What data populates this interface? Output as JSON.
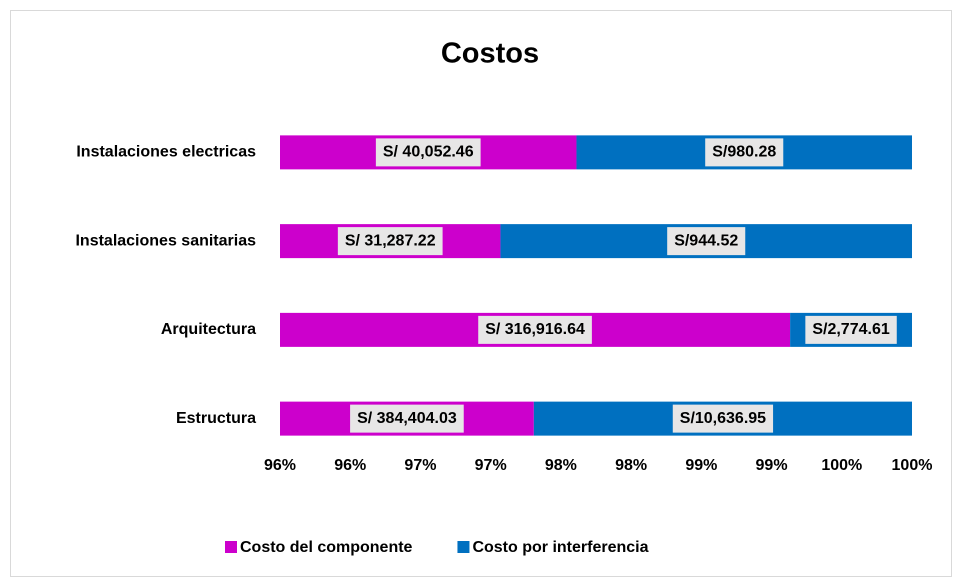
{
  "chart_data": {
    "type": "bar",
    "orientation": "horizontal",
    "stacking": "percent",
    "title": "Costos",
    "categories": [
      "Estructura",
      "Arquitectura",
      "Instalaciones sanitarias",
      "Instalaciones electricas"
    ],
    "series": [
      {
        "name": "Costo del componente",
        "color": "#cc00cc",
        "values": [
          384404.03,
          316916.64,
          31287.22,
          40052.46
        ],
        "value_labels": [
          "S/ 384,404.03",
          "S/ 316,916.64",
          "S/ 31,287.22",
          "S/ 40,052.46"
        ]
      },
      {
        "name": "Costo por interferencia",
        "color": "#0070c0",
        "values": [
          10636.95,
          2774.61,
          944.52,
          980.28
        ],
        "value_labels": [
          "S/10,636.95",
          "S/2,774.61",
          "S/944.52",
          "S/980.28"
        ]
      }
    ],
    "xlim": [
      95.5,
      100
    ],
    "xticks": [
      {
        "value": 95.5,
        "label": "96%"
      },
      {
        "value": 96,
        "label": "96%"
      },
      {
        "value": 96.5,
        "label": "97%"
      },
      {
        "value": 97,
        "label": "97%"
      },
      {
        "value": 97.5,
        "label": "98%"
      },
      {
        "value": 98,
        "label": "98%"
      },
      {
        "value": 98.5,
        "label": "99%"
      },
      {
        "value": 99,
        "label": "99%"
      },
      {
        "value": 99.5,
        "label": "100%"
      },
      {
        "value": 100,
        "label": "100%"
      }
    ],
    "legend": "bottom"
  }
}
